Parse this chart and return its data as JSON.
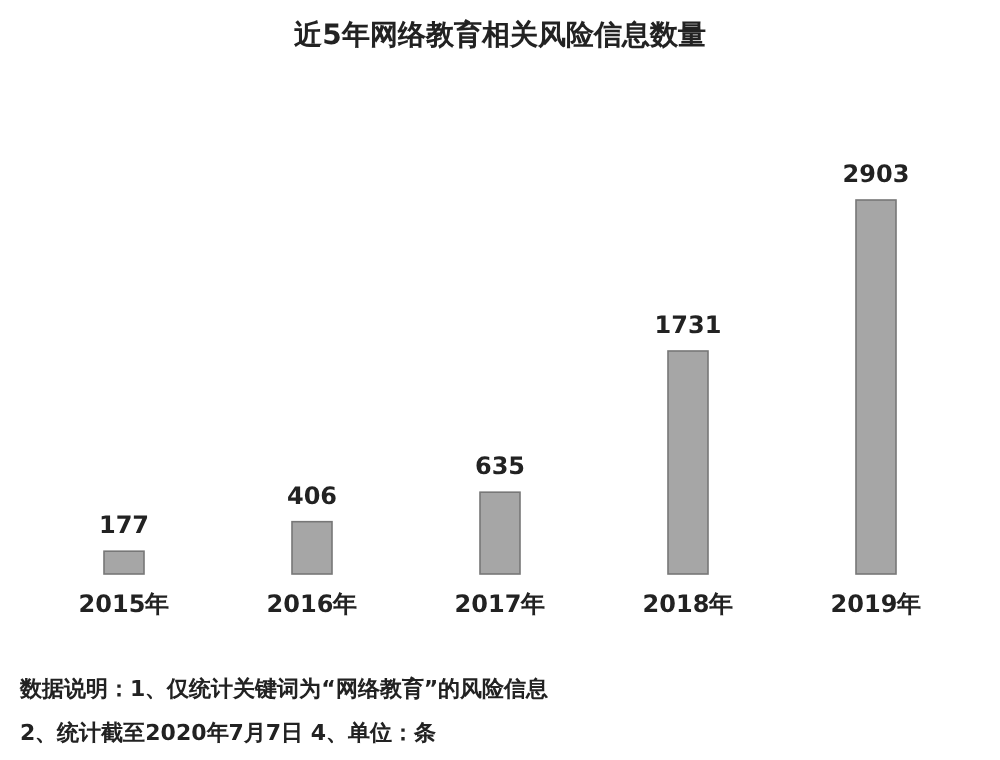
{
  "chart_data": {
    "type": "bar",
    "title": "近5年网络教育相关风险信息数量",
    "categories": [
      "2015年",
      "2016年",
      "2017年",
      "2018年",
      "2019年"
    ],
    "values": [
      177,
      406,
      635,
      1731,
      2903
    ],
    "color": "#a6a6a6",
    "data_labels": true,
    "annotations": [
      "数据说明：1、仅统计关键词为“网络教育”的风险信息",
      "2、统计截至2020年7月7日  4、单位：条"
    ]
  }
}
